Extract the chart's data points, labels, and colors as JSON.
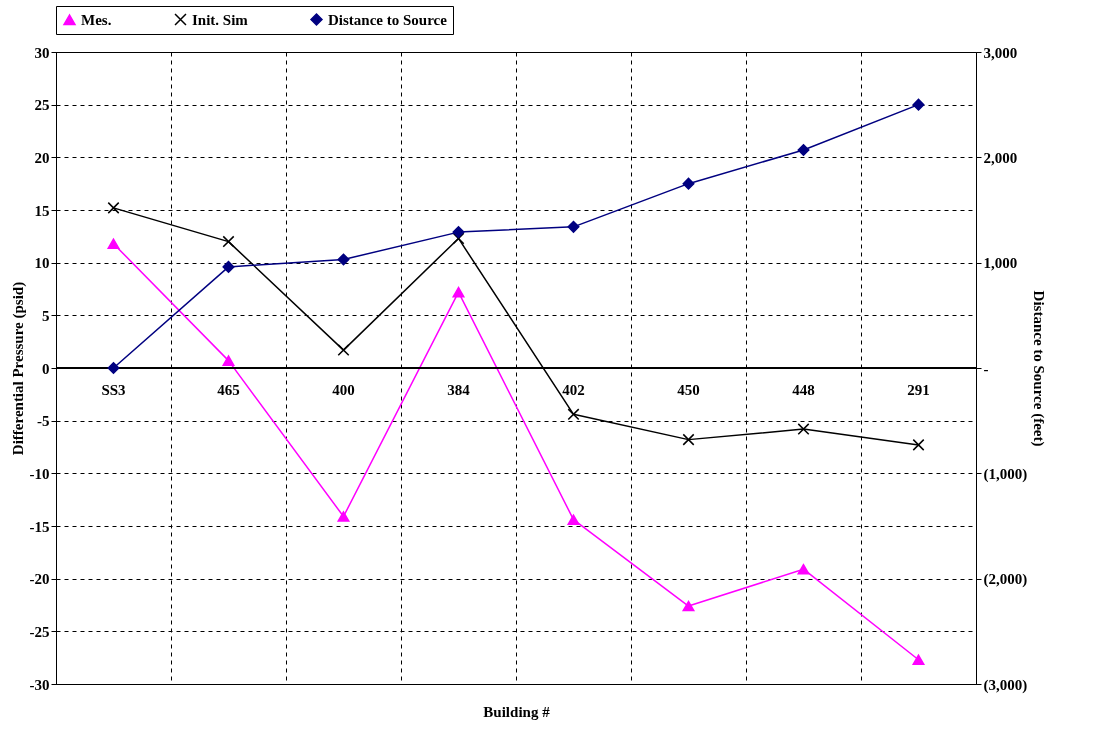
{
  "chart_data": {
    "type": "line",
    "xlabel": "Building #",
    "ylabel": "Differential Pressure (psid)",
    "y2label": "Distance to Source (feet)",
    "categories": [
      "SS3",
      "465",
      "400",
      "384",
      "402",
      "450",
      "448",
      "291"
    ],
    "series": [
      {
        "name": "Mes.",
        "color": "#ff00ff",
        "marker": "triangle",
        "values": [
          11.8,
          0.7,
          -14.1,
          7.2,
          -14.4,
          -22.6,
          -19.1,
          -27.7
        ]
      },
      {
        "name": "Init. Sim",
        "color": "#000000",
        "marker": "cross",
        "values": [
          15.2,
          12.0,
          1.7,
          12.3,
          -4.4,
          -6.8,
          -5.8,
          -7.3
        ]
      },
      {
        "name": "Distance to Source",
        "color": "#000080",
        "marker": "diamond",
        "axis": "y2",
        "values": [
          0,
          960,
          1030,
          1290,
          1340,
          1750,
          2070,
          2500
        ]
      }
    ],
    "ylim": [
      -30,
      30
    ],
    "yticks": [
      -30,
      -25,
      -20,
      -15,
      -10,
      -5,
      0,
      5,
      10,
      15,
      20,
      25,
      30
    ],
    "y2lim": [
      -3000,
      3000
    ],
    "y2ticks": [
      {
        "value": -3000,
        "label": "(3,000)"
      },
      {
        "value": -2000,
        "label": "(2,000)"
      },
      {
        "value": -1000,
        "label": "(1,000)"
      },
      {
        "value": 0,
        "label": "-"
      },
      {
        "value": 1000,
        "label": "1,000"
      },
      {
        "value": 2000,
        "label": "2,000"
      },
      {
        "value": 3000,
        "label": "3,000"
      }
    ],
    "grid": true,
    "legend": "top"
  }
}
